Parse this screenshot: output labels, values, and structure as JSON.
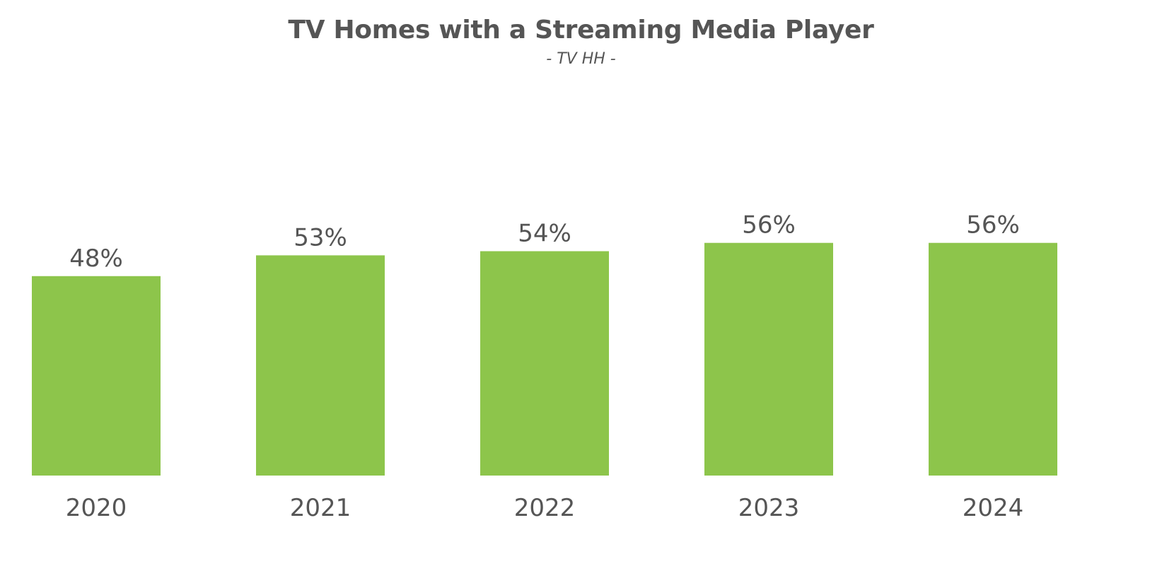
{
  "chart_data": {
    "type": "bar",
    "title": "TV Homes with a Streaming Media Player",
    "subtitle": "- TV HH -",
    "categories": [
      "2020",
      "2021",
      "2022",
      "2023",
      "2024"
    ],
    "values": [
      48,
      53,
      54,
      56,
      56
    ],
    "value_labels": [
      "48%",
      "53%",
      "54%",
      "56%",
      "56%"
    ],
    "xlabel": "",
    "ylabel": "",
    "ylim": [
      0,
      100
    ],
    "grid": false,
    "legend": "none",
    "bar_color": "#8DC54B"
  }
}
